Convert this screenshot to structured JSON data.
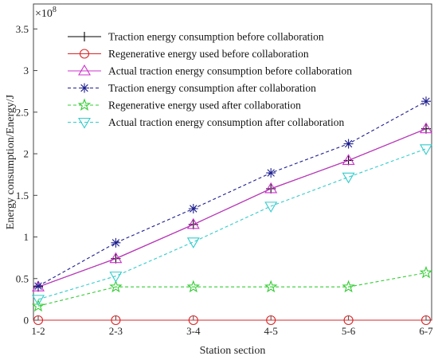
{
  "chart_data": {
    "type": "line",
    "categories": [
      "1-2",
      "2-3",
      "3-4",
      "4-5",
      "5-6",
      "6-7"
    ],
    "xlabel": "Station section",
    "ylabel": "Energy consumption/Energy/J",
    "ylim": [
      0,
      3.8
    ],
    "yticks": [
      0,
      0.5,
      1,
      1.5,
      2,
      2.5,
      3,
      3.5
    ],
    "ytick_labels": [
      "0",
      "0.5",
      "1",
      "1.5",
      "2",
      "2.5",
      "3",
      "3.5"
    ],
    "y_multiplier": "×10",
    "y_multiplier_exp": "8",
    "grid": false,
    "legend_position": "top-right",
    "series": [
      {
        "name": "Traction energy consumption before collaboration",
        "values": [
          0.4,
          0.74,
          1.15,
          1.58,
          1.92,
          2.3
        ],
        "color": "#000000",
        "marker": "plus",
        "dash": "solid"
      },
      {
        "name": "Regenerative energy used before collaboration",
        "values": [
          0,
          0,
          0,
          0,
          0,
          0
        ],
        "color": "#d62728",
        "marker": "circle",
        "dash": "solid"
      },
      {
        "name": "Actual traction energy consumption before collaboration",
        "values": [
          0.4,
          0.74,
          1.15,
          1.58,
          1.92,
          2.3
        ],
        "color": "#cc33cc",
        "marker": "triangle-up",
        "dash": "solid"
      },
      {
        "name": "Traction energy consumption after collaboration",
        "values": [
          0.41,
          0.93,
          1.34,
          1.77,
          2.12,
          2.63
        ],
        "color": "#1f1f8f",
        "marker": "asterisk",
        "dash": "dashed"
      },
      {
        "name": "Regenerative energy used after collaboration",
        "values": [
          0.17,
          0.4,
          0.4,
          0.4,
          0.4,
          0.57
        ],
        "color": "#33cc33",
        "marker": "star",
        "dash": "dashed"
      },
      {
        "name": "Actual traction energy consumption after collaboration",
        "values": [
          0.25,
          0.53,
          0.94,
          1.37,
          1.72,
          2.06
        ],
        "color": "#33cccc",
        "marker": "triangle-down",
        "dash": "dashed"
      }
    ]
  }
}
